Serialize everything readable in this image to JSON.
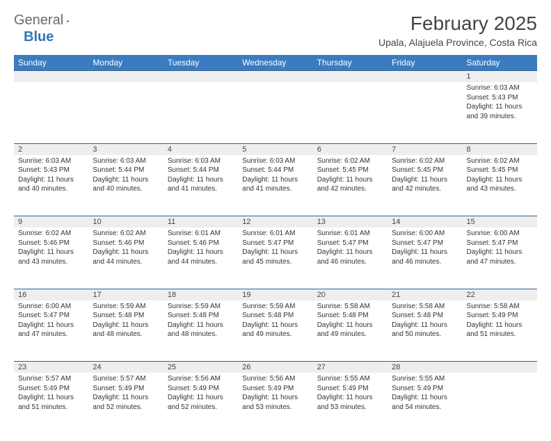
{
  "logo": {
    "word1": "General",
    "word2": "Blue"
  },
  "title": "February 2025",
  "location": "Upala, Alajuela Province, Costa Rica",
  "colors": {
    "header_bg": "#3b7cc0",
    "header_text": "#ffffff",
    "daynum_bg": "#eeeeee",
    "row_border": "#2f5f8f",
    "body_text": "#333333",
    "logo_gray": "#6b6b6b",
    "logo_blue": "#2f77b8"
  },
  "weekdays": [
    "Sunday",
    "Monday",
    "Tuesday",
    "Wednesday",
    "Thursday",
    "Friday",
    "Saturday"
  ],
  "weeks": [
    [
      null,
      null,
      null,
      null,
      null,
      null,
      {
        "n": "1",
        "sr": "Sunrise: 6:03 AM",
        "ss": "Sunset: 5:43 PM",
        "dl": "Daylight: 11 hours and 39 minutes."
      }
    ],
    [
      {
        "n": "2",
        "sr": "Sunrise: 6:03 AM",
        "ss": "Sunset: 5:43 PM",
        "dl": "Daylight: 11 hours and 40 minutes."
      },
      {
        "n": "3",
        "sr": "Sunrise: 6:03 AM",
        "ss": "Sunset: 5:44 PM",
        "dl": "Daylight: 11 hours and 40 minutes."
      },
      {
        "n": "4",
        "sr": "Sunrise: 6:03 AM",
        "ss": "Sunset: 5:44 PM",
        "dl": "Daylight: 11 hours and 41 minutes."
      },
      {
        "n": "5",
        "sr": "Sunrise: 6:03 AM",
        "ss": "Sunset: 5:44 PM",
        "dl": "Daylight: 11 hours and 41 minutes."
      },
      {
        "n": "6",
        "sr": "Sunrise: 6:02 AM",
        "ss": "Sunset: 5:45 PM",
        "dl": "Daylight: 11 hours and 42 minutes."
      },
      {
        "n": "7",
        "sr": "Sunrise: 6:02 AM",
        "ss": "Sunset: 5:45 PM",
        "dl": "Daylight: 11 hours and 42 minutes."
      },
      {
        "n": "8",
        "sr": "Sunrise: 6:02 AM",
        "ss": "Sunset: 5:45 PM",
        "dl": "Daylight: 11 hours and 43 minutes."
      }
    ],
    [
      {
        "n": "9",
        "sr": "Sunrise: 6:02 AM",
        "ss": "Sunset: 5:46 PM",
        "dl": "Daylight: 11 hours and 43 minutes."
      },
      {
        "n": "10",
        "sr": "Sunrise: 6:02 AM",
        "ss": "Sunset: 5:46 PM",
        "dl": "Daylight: 11 hours and 44 minutes."
      },
      {
        "n": "11",
        "sr": "Sunrise: 6:01 AM",
        "ss": "Sunset: 5:46 PM",
        "dl": "Daylight: 11 hours and 44 minutes."
      },
      {
        "n": "12",
        "sr": "Sunrise: 6:01 AM",
        "ss": "Sunset: 5:47 PM",
        "dl": "Daylight: 11 hours and 45 minutes."
      },
      {
        "n": "13",
        "sr": "Sunrise: 6:01 AM",
        "ss": "Sunset: 5:47 PM",
        "dl": "Daylight: 11 hours and 46 minutes."
      },
      {
        "n": "14",
        "sr": "Sunrise: 6:00 AM",
        "ss": "Sunset: 5:47 PM",
        "dl": "Daylight: 11 hours and 46 minutes."
      },
      {
        "n": "15",
        "sr": "Sunrise: 6:00 AM",
        "ss": "Sunset: 5:47 PM",
        "dl": "Daylight: 11 hours and 47 minutes."
      }
    ],
    [
      {
        "n": "16",
        "sr": "Sunrise: 6:00 AM",
        "ss": "Sunset: 5:47 PM",
        "dl": "Daylight: 11 hours and 47 minutes."
      },
      {
        "n": "17",
        "sr": "Sunrise: 5:59 AM",
        "ss": "Sunset: 5:48 PM",
        "dl": "Daylight: 11 hours and 48 minutes."
      },
      {
        "n": "18",
        "sr": "Sunrise: 5:59 AM",
        "ss": "Sunset: 5:48 PM",
        "dl": "Daylight: 11 hours and 48 minutes."
      },
      {
        "n": "19",
        "sr": "Sunrise: 5:59 AM",
        "ss": "Sunset: 5:48 PM",
        "dl": "Daylight: 11 hours and 49 minutes."
      },
      {
        "n": "20",
        "sr": "Sunrise: 5:58 AM",
        "ss": "Sunset: 5:48 PM",
        "dl": "Daylight: 11 hours and 49 minutes."
      },
      {
        "n": "21",
        "sr": "Sunrise: 5:58 AM",
        "ss": "Sunset: 5:48 PM",
        "dl": "Daylight: 11 hours and 50 minutes."
      },
      {
        "n": "22",
        "sr": "Sunrise: 5:58 AM",
        "ss": "Sunset: 5:49 PM",
        "dl": "Daylight: 11 hours and 51 minutes."
      }
    ],
    [
      {
        "n": "23",
        "sr": "Sunrise: 5:57 AM",
        "ss": "Sunset: 5:49 PM",
        "dl": "Daylight: 11 hours and 51 minutes."
      },
      {
        "n": "24",
        "sr": "Sunrise: 5:57 AM",
        "ss": "Sunset: 5:49 PM",
        "dl": "Daylight: 11 hours and 52 minutes."
      },
      {
        "n": "25",
        "sr": "Sunrise: 5:56 AM",
        "ss": "Sunset: 5:49 PM",
        "dl": "Daylight: 11 hours and 52 minutes."
      },
      {
        "n": "26",
        "sr": "Sunrise: 5:56 AM",
        "ss": "Sunset: 5:49 PM",
        "dl": "Daylight: 11 hours and 53 minutes."
      },
      {
        "n": "27",
        "sr": "Sunrise: 5:55 AM",
        "ss": "Sunset: 5:49 PM",
        "dl": "Daylight: 11 hours and 53 minutes."
      },
      {
        "n": "28",
        "sr": "Sunrise: 5:55 AM",
        "ss": "Sunset: 5:49 PM",
        "dl": "Daylight: 11 hours and 54 minutes."
      },
      null
    ]
  ]
}
